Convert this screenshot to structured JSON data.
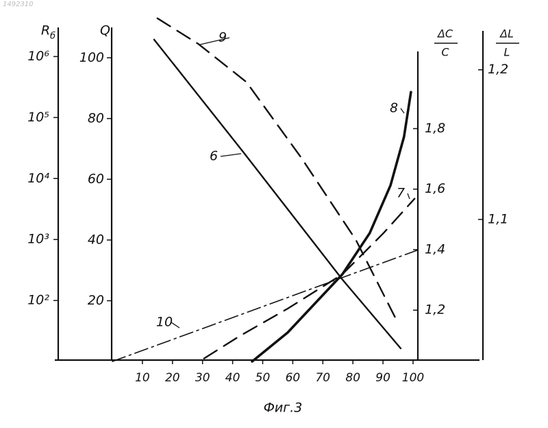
{
  "chart_data": {
    "type": "line",
    "stamp": "1492310",
    "caption": "Фиг.3",
    "xlim": [
      0,
      100
    ],
    "xticks": [
      10,
      20,
      30,
      40,
      50,
      60,
      70,
      80,
      90,
      100
    ],
    "ylabel": "Q",
    "ylim": [
      0,
      110
    ],
    "yticks": [
      20,
      40,
      60,
      80,
      100
    ],
    "r_axis": {
      "label": "R",
      "subscript": "б",
      "log": true,
      "ylim": [
        10,
        3000000
      ],
      "yticks": [
        {
          "value": 100,
          "label": "10²"
        },
        {
          "value": 1000,
          "label": "10³"
        },
        {
          "value": 10000,
          "label": "10⁴"
        },
        {
          "value": 100000,
          "label": "10⁵"
        },
        {
          "value": 1000000,
          "label": "10⁶"
        }
      ]
    },
    "dc_axis": {
      "numerator": "ΔC",
      "denominator": "C",
      "ylim": [
        1.035,
        2.055
      ],
      "yticks": [
        {
          "value": 1.2,
          "label": "1,2"
        },
        {
          "value": 1.4,
          "label": "1,4"
        },
        {
          "value": 1.6,
          "label": "1,6"
        },
        {
          "value": 1.8,
          "label": "1,8"
        }
      ]
    },
    "dl_axis": {
      "numerator": "ΔL",
      "denominator": "L",
      "ylim": [
        1.006,
        1.226
      ],
      "yticks": [
        {
          "value": 1.1,
          "label": "1,1"
        },
        {
          "value": 1.2,
          "label": "1,2"
        }
      ]
    },
    "series": [
      {
        "name": "9",
        "color": "#111",
        "style": "dash",
        "x": [
          15,
          28.7,
          44.6,
          62.9,
          81,
          94.8
        ],
        "values": [
          113,
          104.5,
          92,
          67,
          40,
          13
        ]
      },
      {
        "name": "6",
        "color": "#111",
        "style": "solid",
        "x": [
          13.9,
          43.5,
          76.5,
          95.9
        ],
        "values": [
          106,
          69,
          27,
          4.3
        ]
      },
      {
        "name": "8",
        "color": "#111",
        "style": "thick",
        "x": [
          46.5,
          58.3,
          76.5,
          85.6,
          92.5,
          97,
          99.3
        ],
        "values": [
          0,
          9.5,
          28.7,
          42.3,
          58,
          74,
          88.7
        ]
      },
      {
        "name": "7",
        "color": "#111",
        "style": "dash",
        "x": [
          30.5,
          42.4,
          58.3,
          76.5,
          90.2,
          100.5
        ],
        "values": [
          1,
          8.4,
          17.4,
          28.7,
          42.3,
          53.6
        ]
      },
      {
        "name": "10",
        "color": "#111",
        "style": "dashdot",
        "x": [
          0,
          101.6
        ],
        "values": [
          0,
          36.7
        ]
      }
    ]
  }
}
